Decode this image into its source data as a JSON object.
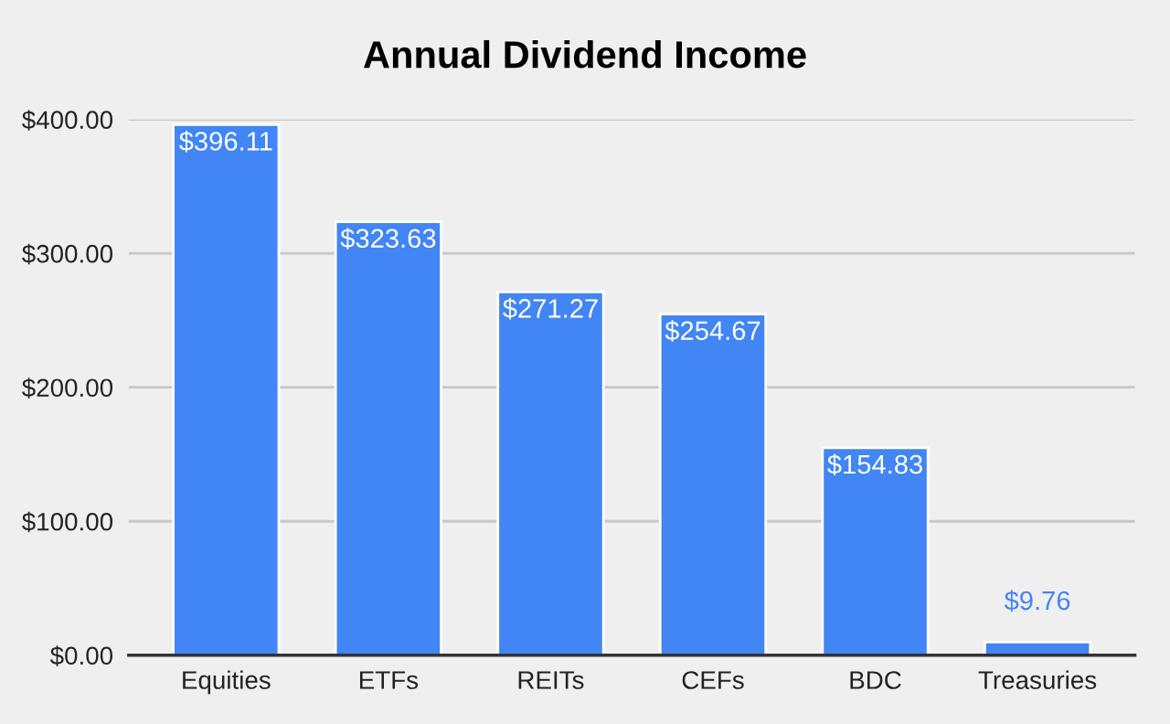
{
  "chart_data": {
    "type": "bar",
    "title": "Annual Dividend Income",
    "categories": [
      "Equities",
      "ETFs",
      "REITs",
      "CEFs",
      "BDC",
      "Treasuries"
    ],
    "values": [
      396.11,
      323.63,
      271.27,
      254.67,
      154.83,
      9.76
    ],
    "value_labels": [
      "$396.11",
      "$323.63",
      "$271.27",
      "$254.67",
      "$154.83",
      "$9.76"
    ],
    "color": "#4285f4",
    "ylim": [
      0,
      400
    ],
    "yticks": [
      {
        "value": 0,
        "label": "$0.00"
      },
      {
        "value": 100,
        "label": "$100.00"
      },
      {
        "value": 200,
        "label": "$200.00"
      },
      {
        "value": 300,
        "label": "$300.00"
      },
      {
        "value": 400,
        "label": "$400.00"
      }
    ],
    "grid": "y"
  }
}
